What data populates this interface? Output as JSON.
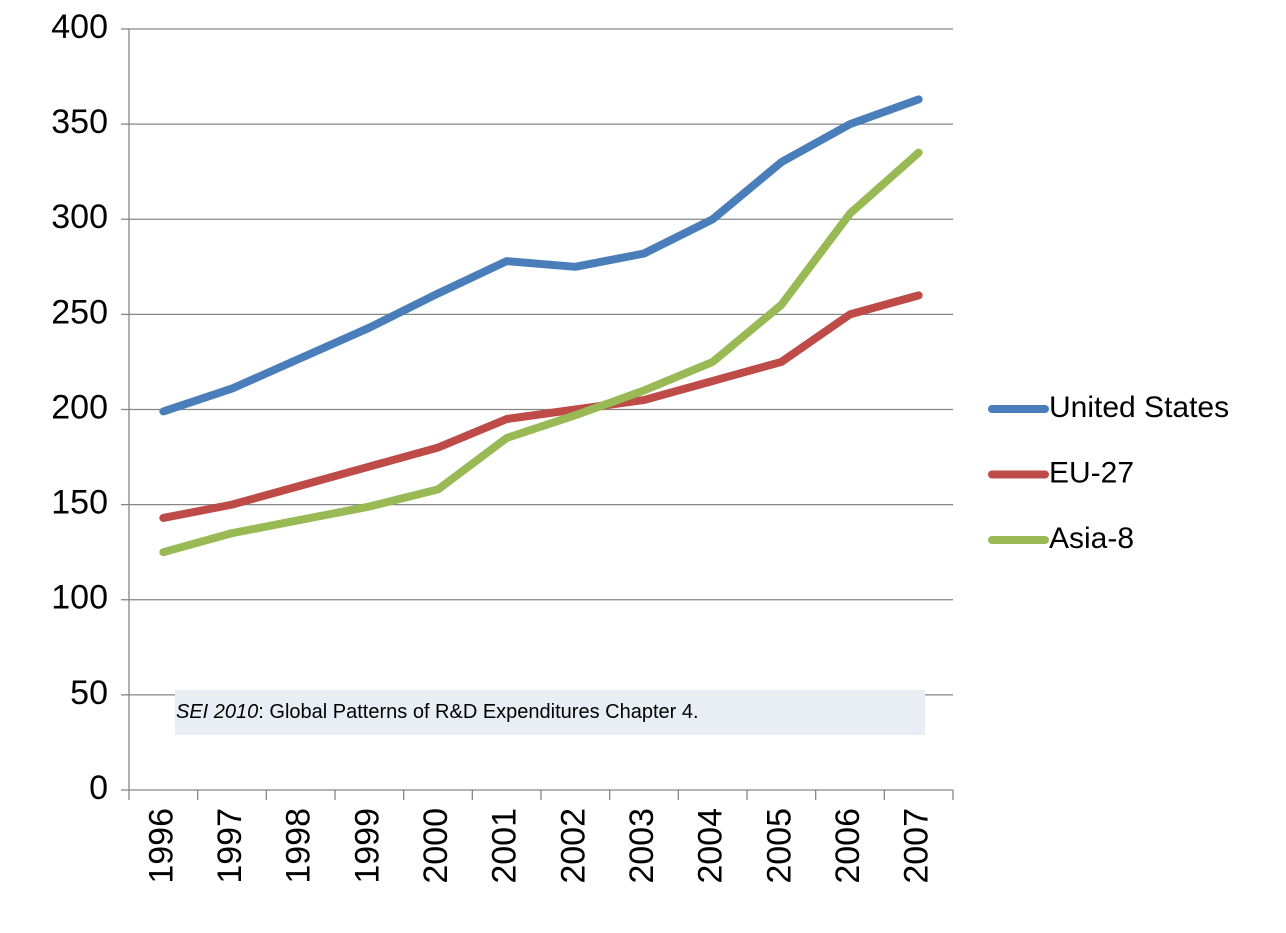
{
  "chart_data": {
    "type": "line",
    "categories": [
      "1996",
      "1997",
      "1998",
      "1999",
      "2000",
      "2001",
      "2002",
      "2003",
      "2004",
      "2005",
      "2006",
      "2007"
    ],
    "series": [
      {
        "name": "United States",
        "color": "#4a7ebb",
        "values": [
          199,
          211,
          227,
          243,
          261,
          278,
          275,
          282,
          300,
          330,
          350,
          363
        ]
      },
      {
        "name": "EU-27",
        "color": "#be4b48",
        "values": [
          143,
          150,
          160,
          170,
          180,
          195,
          200,
          205,
          215,
          225,
          250,
          260
        ]
      },
      {
        "name": "Asia-8",
        "color": "#98b954",
        "values": [
          125,
          135,
          142,
          149,
          158,
          185,
          197,
          210,
          225,
          255,
          303,
          335
        ]
      }
    ],
    "ylim": [
      0,
      400
    ],
    "yticks": [
      0,
      50,
      100,
      150,
      200,
      250,
      300,
      350,
      400
    ],
    "grid": true,
    "legend": "right",
    "annotation_source": "SEI 2010",
    "annotation_text": ": Global Patterns of R&D Expenditures Chapter 4."
  }
}
